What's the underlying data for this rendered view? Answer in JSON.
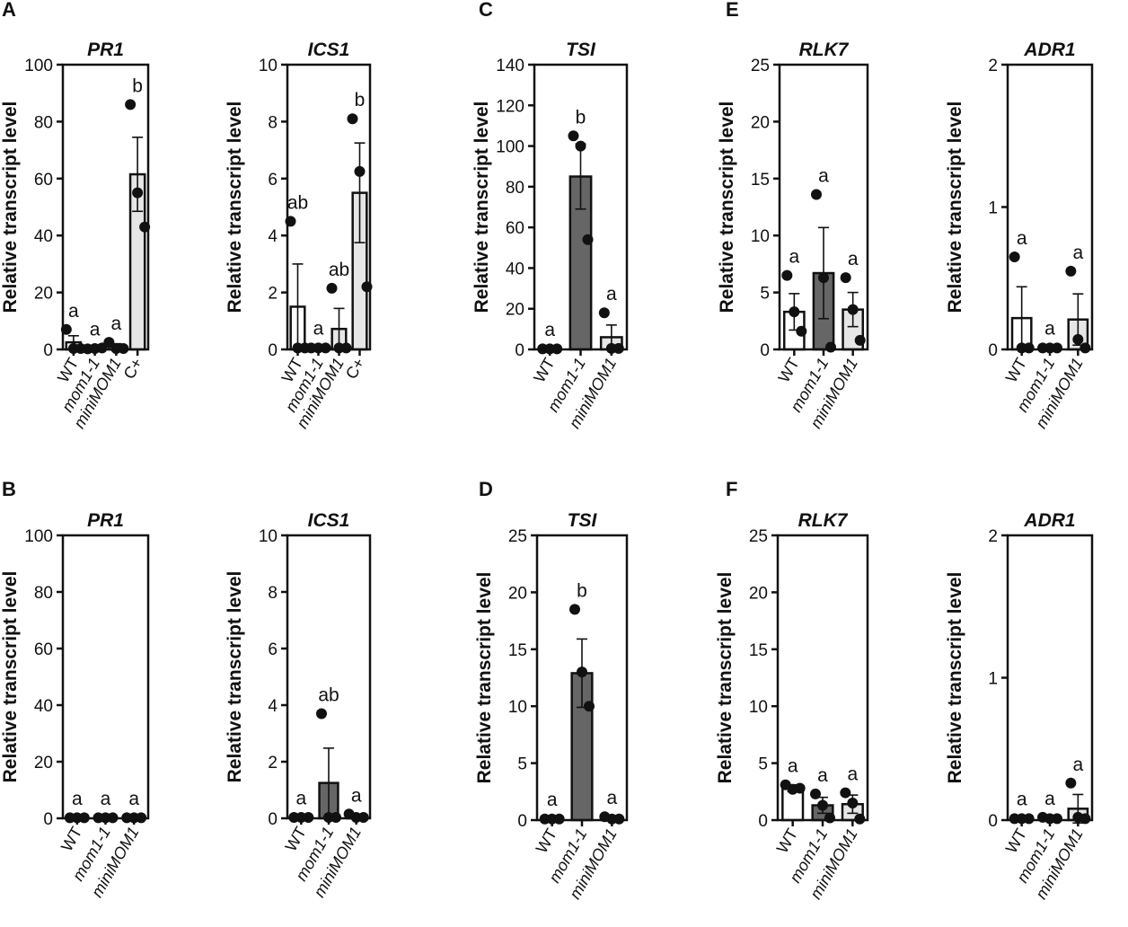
{
  "chart_data": [
    {
      "type": "bar",
      "panel": "A",
      "title": "PR1",
      "ylabel": "Relative transcript level",
      "categories": [
        "WT",
        "mom1-1",
        "miniMOM1",
        "C+"
      ],
      "category_italic": [
        false,
        true,
        true,
        false
      ],
      "colors": [
        "#ffffff",
        "#666666",
        "#e6e6e6",
        "#e6e6e6"
      ],
      "values": [
        2.5,
        0.3,
        1,
        61.5
      ],
      "errors": [
        2.3,
        0.2,
        1,
        13
      ],
      "points": [
        [
          7,
          0.3,
          0.3
        ],
        [
          0.2,
          0.3,
          0.5
        ],
        [
          2.5,
          0.3,
          0.3
        ],
        [
          86,
          55,
          43
        ]
      ],
      "annotations": [
        "a",
        "a",
        "a",
        "b"
      ],
      "ylim": [
        0,
        100
      ],
      "yticks": [
        0,
        20,
        40,
        60,
        80,
        100
      ]
    },
    {
      "type": "bar",
      "title": "ICS1",
      "ylabel": "Relative transcript level",
      "categories": [
        "WT",
        "mom1-1",
        "miniMOM1",
        "C+"
      ],
      "category_italic": [
        false,
        true,
        true,
        false
      ],
      "colors": [
        "#ffffff",
        "#666666",
        "#e6e6e6",
        "#e6e6e6"
      ],
      "values": [
        1.5,
        0.05,
        0.72,
        5.5
      ],
      "errors": [
        1.5,
        0.03,
        0.72,
        1.75
      ],
      "points": [
        [
          4.5,
          0.05,
          0.05
        ],
        [
          0.05,
          0.05,
          0.05
        ],
        [
          2.15,
          0.05,
          0.05
        ],
        [
          8.1,
          6.25,
          2.2
        ]
      ],
      "annotations": [
        "ab",
        "a",
        "ab",
        "b"
      ],
      "ylim": [
        0,
        10
      ],
      "yticks": [
        0,
        2,
        4,
        6,
        8,
        10
      ]
    },
    {
      "type": "bar",
      "panel": "C",
      "title": "TSI",
      "ylabel": "Relative transcript level",
      "categories": [
        "WT",
        "mom1-1",
        "miniMOM1"
      ],
      "category_italic": [
        false,
        true,
        true
      ],
      "colors": [
        "#ffffff",
        "#666666",
        "#e6e6e6"
      ],
      "values": [
        0.3,
        85,
        6
      ],
      "errors": [
        0.2,
        16,
        6
      ],
      "points": [
        [
          0.3,
          0.3,
          0.3
        ],
        [
          105,
          100,
          54
        ],
        [
          18,
          0.5,
          0.5
        ]
      ],
      "annotations": [
        "a",
        "b",
        "a"
      ],
      "ylim": [
        0,
        140
      ],
      "yticks": [
        0,
        20,
        40,
        60,
        80,
        100,
        120,
        140
      ]
    },
    {
      "type": "bar",
      "panel": "E",
      "title": "RLK7",
      "ylabel": "Relative transcript level",
      "categories": [
        "WT",
        "mom1-1",
        "miniMOM1"
      ],
      "category_italic": [
        false,
        true,
        true
      ],
      "colors": [
        "#ffffff",
        "#666666",
        "#e6e6e6"
      ],
      "values": [
        3.3,
        6.7,
        3.5
      ],
      "errors": [
        1.6,
        4,
        1.5
      ],
      "points": [
        [
          6.5,
          3.3,
          1.6
        ],
        [
          13.6,
          6.3,
          0.2
        ],
        [
          6.3,
          3.5,
          0.8
        ]
      ],
      "annotations": [
        "a",
        "a",
        "a"
      ],
      "ylim": [
        0,
        25
      ],
      "yticks": [
        0,
        5,
        10,
        15,
        20,
        25
      ]
    },
    {
      "type": "bar",
      "title": "ADR1",
      "ylabel": "Relative transcript level",
      "categories": [
        "WT",
        "mom1-1",
        "miniMOM1"
      ],
      "category_italic": [
        false,
        true,
        true
      ],
      "colors": [
        "#ffffff",
        "#666666",
        "#e6e6e6"
      ],
      "values": [
        0.22,
        0.01,
        0.21
      ],
      "errors": [
        0.22,
        0.005,
        0.18
      ],
      "points": [
        [
          0.65,
          0.01,
          0.01
        ],
        [
          0.01,
          0.01,
          0.01
        ],
        [
          0.55,
          0.07,
          0.01
        ]
      ],
      "annotations": [
        "a",
        "a",
        "a"
      ],
      "ylim": [
        0,
        2
      ],
      "yticks": [
        0,
        1,
        2
      ]
    },
    {
      "type": "bar",
      "panel": "B",
      "title": "PR1",
      "ylabel": "Relative transcript level",
      "categories": [
        "WT",
        "mom1-1",
        "miniMOM1"
      ],
      "category_italic": [
        false,
        true,
        true
      ],
      "colors": [
        "#ffffff",
        "#666666",
        "#e6e6e6"
      ],
      "values": [
        0.2,
        0.2,
        0.2
      ],
      "errors": [
        0.1,
        0.1,
        0.1
      ],
      "points": [
        [
          0.2,
          0.2,
          0.2
        ],
        [
          0.2,
          0.2,
          0.2
        ],
        [
          0.2,
          0.2,
          0.2
        ]
      ],
      "annotations": [
        "a",
        "a",
        "a"
      ],
      "ylim": [
        0,
        100
      ],
      "yticks": [
        0,
        20,
        40,
        60,
        80,
        100
      ]
    },
    {
      "type": "bar",
      "title": "ICS1",
      "ylabel": "Relative transcript level",
      "categories": [
        "WT",
        "mom1-1",
        "miniMOM1"
      ],
      "category_italic": [
        false,
        true,
        true
      ],
      "colors": [
        "#ffffff",
        "#666666",
        "#e6e6e6"
      ],
      "values": [
        0.03,
        1.25,
        0.05
      ],
      "errors": [
        0.02,
        1.23,
        0.05
      ],
      "points": [
        [
          0.03,
          0.03,
          0.03
        ],
        [
          3.7,
          0.03,
          0.03
        ],
        [
          0.15,
          0.03,
          0.03
        ]
      ],
      "annotations": [
        "a",
        "ab",
        "a"
      ],
      "ylim": [
        0,
        10
      ],
      "yticks": [
        0,
        2,
        4,
        6,
        8,
        10
      ]
    },
    {
      "type": "bar",
      "panel": "D",
      "title": "TSI",
      "ylabel": "Relative transcript level",
      "categories": [
        "WT",
        "mom1-1",
        "miniMOM1"
      ],
      "category_italic": [
        false,
        true,
        true
      ],
      "colors": [
        "#ffffff",
        "#666666",
        "#e6e6e6"
      ],
      "values": [
        0.1,
        12.9,
        0.1
      ],
      "errors": [
        0.05,
        3,
        0.1
      ],
      "points": [
        [
          0.1,
          0.1,
          0.1
        ],
        [
          18.5,
          13,
          10
        ],
        [
          0.3,
          0.1,
          0.1
        ]
      ],
      "annotations": [
        "a",
        "b",
        "a"
      ],
      "ylim": [
        0,
        25
      ],
      "yticks": [
        0,
        5,
        10,
        15,
        20,
        25
      ]
    },
    {
      "type": "bar",
      "panel": "F",
      "title": "RLK7",
      "ylabel": "Relative transcript level",
      "categories": [
        "WT",
        "mom1-1",
        "miniMOM1"
      ],
      "category_italic": [
        false,
        true,
        true
      ],
      "colors": [
        "#ffffff",
        "#666666",
        "#e6e6e6"
      ],
      "values": [
        2.8,
        1.3,
        1.4
      ],
      "errors": [
        0.3,
        0.7,
        0.8
      ],
      "points": [
        [
          3.1,
          2.7,
          2.8
        ],
        [
          2.3,
          1.3,
          0.2
        ],
        [
          2.4,
          1.5,
          0.1
        ]
      ],
      "annotations": [
        "a",
        "a",
        "a"
      ],
      "ylim": [
        0,
        25
      ],
      "yticks": [
        0,
        5,
        10,
        15,
        20,
        25
      ]
    },
    {
      "type": "bar",
      "title": "ADR1",
      "ylabel": "Relative transcript level",
      "categories": [
        "WT",
        "mom1-1",
        "miniMOM1"
      ],
      "category_italic": [
        false,
        true,
        true
      ],
      "colors": [
        "#ffffff",
        "#666666",
        "#e6e6e6"
      ],
      "values": [
        0.01,
        0.01,
        0.08
      ],
      "errors": [
        0.005,
        0.005,
        0.1
      ],
      "points": [
        [
          0.01,
          0.01,
          0.01
        ],
        [
          0.02,
          0.01,
          0.01
        ],
        [
          0.26,
          0.02,
          0.01
        ]
      ],
      "annotations": [
        "a",
        "a",
        "a"
      ],
      "ylim": [
        0,
        2
      ],
      "yticks": [
        0,
        1,
        2
      ]
    }
  ]
}
